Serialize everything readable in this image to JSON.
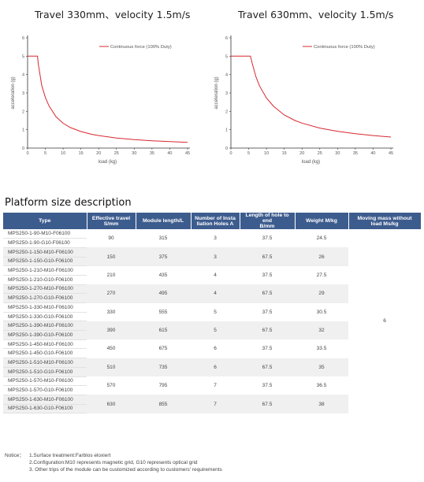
{
  "charts": [
    {
      "title": "Travel 330mm、velocity 1.5m/s",
      "ylabel": "acceleration (g)",
      "xlabel": "load (kg)",
      "legend": "Continuous force (100% Duty)",
      "xticks": [
        "0",
        "5",
        "10",
        "15",
        "20",
        "25",
        "30",
        "35",
        "40",
        "45"
      ],
      "yticks": [
        "0",
        "1",
        "2",
        "3",
        "4",
        "5",
        "6"
      ]
    },
    {
      "title": "Travel 630mm、velocity 1.5m/s",
      "ylabel": "acceleration (g)",
      "xlabel": "load (kg)",
      "legend": "Continuous force (100% Duty)",
      "xticks": [
        "0",
        "5",
        "10",
        "15",
        "20",
        "25",
        "30",
        "35",
        "40",
        "45"
      ],
      "yticks": [
        "0",
        "1",
        "2",
        "3",
        "4",
        "5",
        "6"
      ]
    }
  ],
  "chart_data": [
    {
      "type": "line",
      "title": "Travel 330mm、velocity 1.5m/s",
      "xlabel": "load (kg)",
      "ylabel": "acceleration (g)",
      "xlim": [
        0,
        45
      ],
      "ylim": [
        0,
        6
      ],
      "grid": false,
      "legend_position": "top-right",
      "series": [
        {
          "name": "Continuous force (100% Duty)",
          "color": "#d7282f",
          "x": [
            0,
            2.8,
            3,
            4,
            5,
            6,
            8,
            10,
            12,
            15,
            18,
            20,
            25,
            30,
            35,
            40,
            45
          ],
          "y": [
            5.0,
            5.0,
            4.6,
            3.4,
            2.75,
            2.3,
            1.7,
            1.35,
            1.12,
            0.9,
            0.75,
            0.68,
            0.55,
            0.46,
            0.4,
            0.35,
            0.31
          ]
        }
      ]
    },
    {
      "type": "line",
      "title": "Travel 630mm、velocity 1.5m/s",
      "xlabel": "load (kg)",
      "ylabel": "acceleration (g)",
      "xlim": [
        0,
        45
      ],
      "ylim": [
        0,
        6
      ],
      "grid": false,
      "legend_position": "top-right",
      "series": [
        {
          "name": "Continuous force (100% Duty)",
          "color": "#d7282f",
          "x": [
            0,
            5.5,
            6,
            7,
            8,
            10,
            12,
            15,
            18,
            20,
            25,
            30,
            35,
            40,
            45
          ],
          "y": [
            5.0,
            5.0,
            4.6,
            3.9,
            3.4,
            2.72,
            2.27,
            1.8,
            1.5,
            1.36,
            1.09,
            0.91,
            0.78,
            0.68,
            0.6
          ]
        }
      ]
    }
  ],
  "section_title": "Platform size description",
  "table": {
    "headers": [
      "Type",
      "Effective travel\nS/mm",
      "Module length/L",
      "Number of Insta\nllation Holes A",
      "Length of hole to end\nB/mm",
      "Weight M/kg",
      "Moving mass without\nload Ms/kg"
    ],
    "moving_mass": "6",
    "groups": [
      {
        "types": [
          "MPS250-1-90-M10-F06100",
          "MPS250-1-90-G10-F06100"
        ],
        "travel": "90",
        "length": "315",
        "holes": "3",
        "hole_end": "37.5",
        "weight": "24.5"
      },
      {
        "types": [
          "MPS250-1-150-M10-F06100",
          "MPS250-1-150-G10-F06100"
        ],
        "travel": "150",
        "length": "375",
        "holes": "3",
        "hole_end": "67.5",
        "weight": "26"
      },
      {
        "types": [
          "MPS250-1-210-M10-F06100",
          "MPS250-1-210-G10-F06100"
        ],
        "travel": "210",
        "length": "435",
        "holes": "4",
        "hole_end": "37.5",
        "weight": "27.5"
      },
      {
        "types": [
          "MPS250-1-270-M10-F06100",
          "MPS250-1-270-G10-F06100"
        ],
        "travel": "270",
        "length": "495",
        "holes": "4",
        "hole_end": "67.5",
        "weight": "29"
      },
      {
        "types": [
          "MPS250-1-330-M10-F06100",
          "MPS250-1-330-G10-F06100"
        ],
        "travel": "330",
        "length": "555",
        "holes": "5",
        "hole_end": "37.5",
        "weight": "30.5"
      },
      {
        "types": [
          "MPS250-1-390-M10-F06100",
          "MPS250-1-390-G10-F06100"
        ],
        "travel": "390",
        "length": "615",
        "holes": "5",
        "hole_end": "67.5",
        "weight": "32"
      },
      {
        "types": [
          "MPS250-1-450-M10-F06100",
          "MPS250-1-450-G10-F06100"
        ],
        "travel": "450",
        "length": "675",
        "holes": "6",
        "hole_end": "37.5",
        "weight": "33.5"
      },
      {
        "types": [
          "MPS250-1-510-M10-F06100",
          "MPS250-1-510-G10-F06100"
        ],
        "travel": "510",
        "length": "735",
        "holes": "6",
        "hole_end": "67.5",
        "weight": "35"
      },
      {
        "types": [
          "MPS250-1-570-M10-F06100",
          "MPS250-1-570-G10-F06100"
        ],
        "travel": "570",
        "length": "795",
        "holes": "7",
        "hole_end": "37.5",
        "weight": "36.5"
      },
      {
        "types": [
          "MPS250-1-630-M10-F06100",
          "MPS250-1-630-G10-F06100"
        ],
        "travel": "630",
        "length": "855",
        "holes": "7",
        "hole_end": "67.5",
        "weight": "38"
      }
    ]
  },
  "notice": {
    "label": "Notice：",
    "items": [
      "1.Surface treatment:Farblos eloxiert",
      "2.Configuration:M10 represents magnetic grid, G10 represents optical grid",
      "3. Other trips of the module can be customized according to customers' requirements"
    ]
  },
  "colors": {
    "header_bg": "#3d5c8e",
    "row_alt": "#f0f0f0",
    "curve": "#d7282f"
  }
}
